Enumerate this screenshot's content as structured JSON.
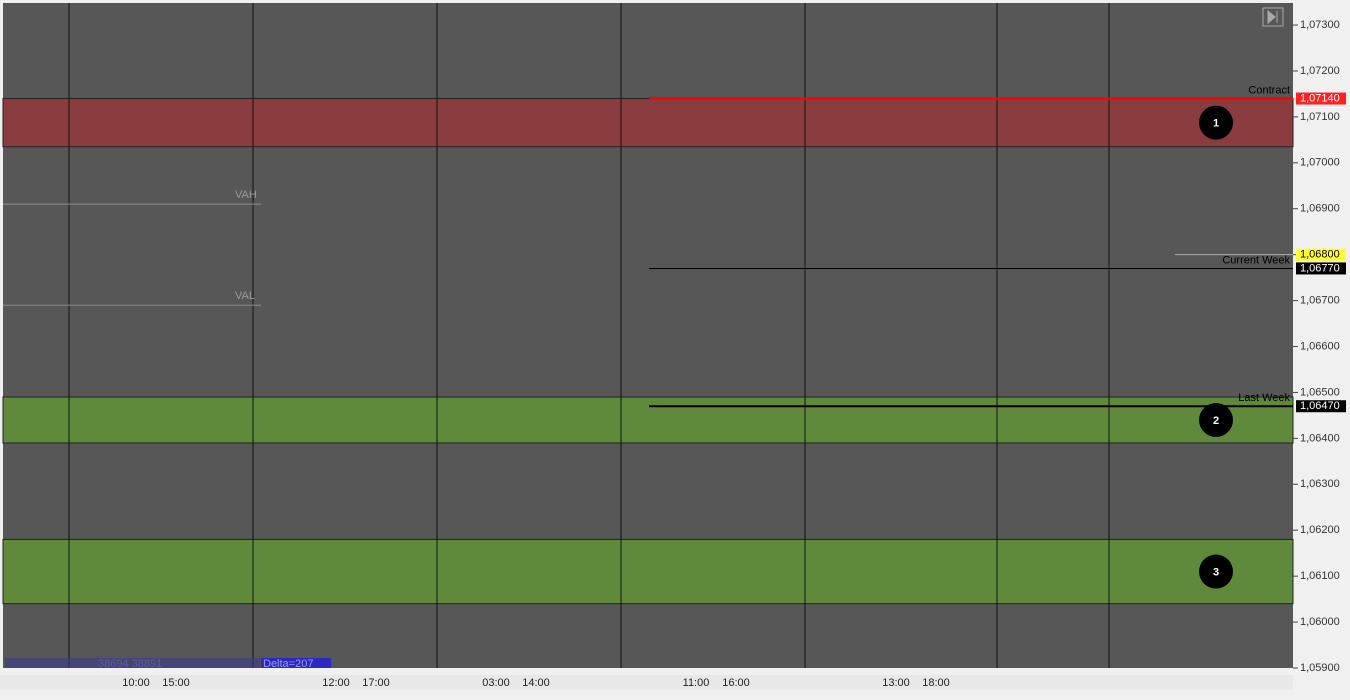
{
  "chart_data": {
    "type": "price-levels",
    "ylim": [
      1.059,
      1.07348
    ],
    "yticks": [
      {
        "value": 1.059,
        "label": "1,05900"
      },
      {
        "value": 1.06,
        "label": "1,06000"
      },
      {
        "value": 1.061,
        "label": "1,06100"
      },
      {
        "value": 1.062,
        "label": "1,06200"
      },
      {
        "value": 1.063,
        "label": "1,06300"
      },
      {
        "value": 1.064,
        "label": "1,06400"
      },
      {
        "value": 1.065,
        "label": "1,06500"
      },
      {
        "value": 1.066,
        "label": "1,06600"
      },
      {
        "value": 1.067,
        "label": "1,06700"
      },
      {
        "value": 1.068,
        "label": "1,06800"
      },
      {
        "value": 1.069,
        "label": "1,06900"
      },
      {
        "value": 1.07,
        "label": "1,07000"
      },
      {
        "value": 1.071,
        "label": "1,07100"
      },
      {
        "value": 1.072,
        "label": "1,07200"
      },
      {
        "value": 1.073,
        "label": "1,07300"
      }
    ],
    "zones": [
      {
        "label": "1",
        "from": 1.07035,
        "to": 1.0714,
        "color": "#8a3c3e"
      },
      {
        "label": "2",
        "from": 1.0639,
        "to": 1.0649,
        "color": "#5f8a3b"
      },
      {
        "label": "3",
        "from": 1.0604,
        "to": 1.0618,
        "color": "#5f8a3b"
      }
    ],
    "levels": [
      {
        "name": "Contract",
        "value": 1.0714,
        "label": "1,07140",
        "color": "#ff0000",
        "tag": "#ff2020"
      },
      {
        "name": "Current Week",
        "value": 1.0677,
        "label": "1,06770",
        "color": "#000000",
        "tag": "#000000"
      },
      {
        "name": "Last Week",
        "value": 1.0647,
        "label": "1,06470",
        "color": "#000000",
        "tag": "#000000"
      }
    ],
    "value_area": [
      {
        "name": "VAH",
        "value": 1.0691
      },
      {
        "name": "VAL",
        "value": 1.0669
      }
    ],
    "last_price": {
      "value": 1.068,
      "label": "1,06800"
    },
    "time_labels": [
      "10:00",
      "15:00",
      "12:00",
      "17:00",
      "03:00",
      "14:00",
      "11:00",
      "16:00",
      "13:00",
      "18:00"
    ],
    "footer": {
      "volumes": "38694 38891",
      "delta": "Delta=207"
    }
  }
}
